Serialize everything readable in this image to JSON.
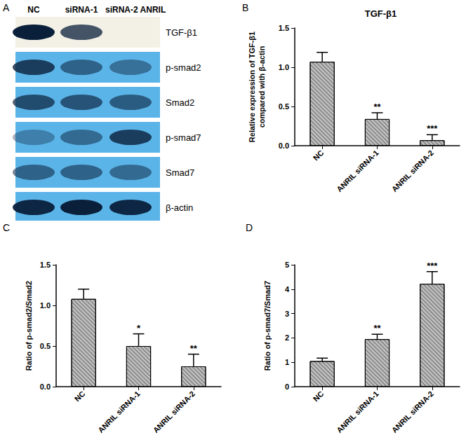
{
  "blot": {
    "panel": "A",
    "lanes": [
      "NC",
      "siRNA-1",
      "siRNA-2 ANRIL"
    ],
    "rows": [
      {
        "label": "TGF-β1",
        "intensity": [
          1.0,
          0.75,
          0.0
        ],
        "background": "#f3f0e6"
      },
      {
        "label": "p-smad2",
        "intensity": [
          0.8,
          0.55,
          0.45
        ],
        "background": "#5bb4e8"
      },
      {
        "label": "Smad2",
        "intensity": [
          0.7,
          0.65,
          0.6
        ],
        "background": "#5bb4e8"
      },
      {
        "label": "p-smad7",
        "intensity": [
          0.35,
          0.5,
          0.8
        ],
        "background": "#5bb4e8"
      },
      {
        "label": "Smad7",
        "intensity": [
          0.55,
          0.55,
          0.5
        ],
        "background": "#5bb4e8"
      },
      {
        "label": "β-actin",
        "intensity": [
          0.95,
          1.0,
          0.95
        ],
        "background": "#5bb4e8"
      }
    ]
  },
  "chart_data": [
    {
      "type": "bar",
      "panel": "B",
      "title": "TGF-β1",
      "ylabel": [
        "Relative expression of TGF-β1",
        "compared with β-actin"
      ],
      "categories": [
        "NC",
        "ANRIL siRNA-1",
        "ANRIL siRNA-2"
      ],
      "values": [
        1.07,
        0.34,
        0.07
      ],
      "errors": [
        0.12,
        0.08,
        0.07
      ],
      "significance": [
        null,
        "**",
        "***"
      ],
      "color": "#bdbdbd",
      "ylim": [
        0,
        1.5
      ],
      "yticks": [
        {
          "value": 0,
          "label": "0.0"
        },
        {
          "value": 0.5,
          "label": "0.5"
        },
        {
          "value": 1,
          "label": "1.0"
        },
        {
          "value": 1.5,
          "label": "1.5"
        }
      ],
      "grid": false
    },
    {
      "type": "bar",
      "panel": "C",
      "ylabel": [
        "Ratio of p-smad2/Smad2"
      ],
      "categories": [
        "NC",
        "ANRIL siRNA-1",
        "ANRIL siRNA-2"
      ],
      "values": [
        1.08,
        0.5,
        0.25
      ],
      "errors": [
        0.12,
        0.15,
        0.15
      ],
      "significance": [
        null,
        "*",
        "**"
      ],
      "color": "#bdbdbd",
      "ylim": [
        0,
        1.5
      ],
      "yticks": [
        {
          "value": 0,
          "label": "0.0"
        },
        {
          "value": 0.5,
          "label": "0.5"
        },
        {
          "value": 1,
          "label": "1.0"
        },
        {
          "value": 1.5,
          "label": "1.5"
        }
      ],
      "grid": false
    },
    {
      "type": "bar",
      "panel": "D",
      "ylabel": [
        "Ratio of p-smad7/Smad7"
      ],
      "categories": [
        "NC",
        "ANRIL siRNA-1",
        "ANRIL siRNA-2"
      ],
      "values": [
        1.05,
        1.95,
        4.22
      ],
      "errors": [
        0.12,
        0.2,
        0.5
      ],
      "significance": [
        null,
        "**",
        "***"
      ],
      "color": "#bdbdbd",
      "ylim": [
        0,
        5
      ],
      "yticks": [
        0,
        1,
        2,
        3,
        4,
        5
      ],
      "grid": false
    }
  ]
}
